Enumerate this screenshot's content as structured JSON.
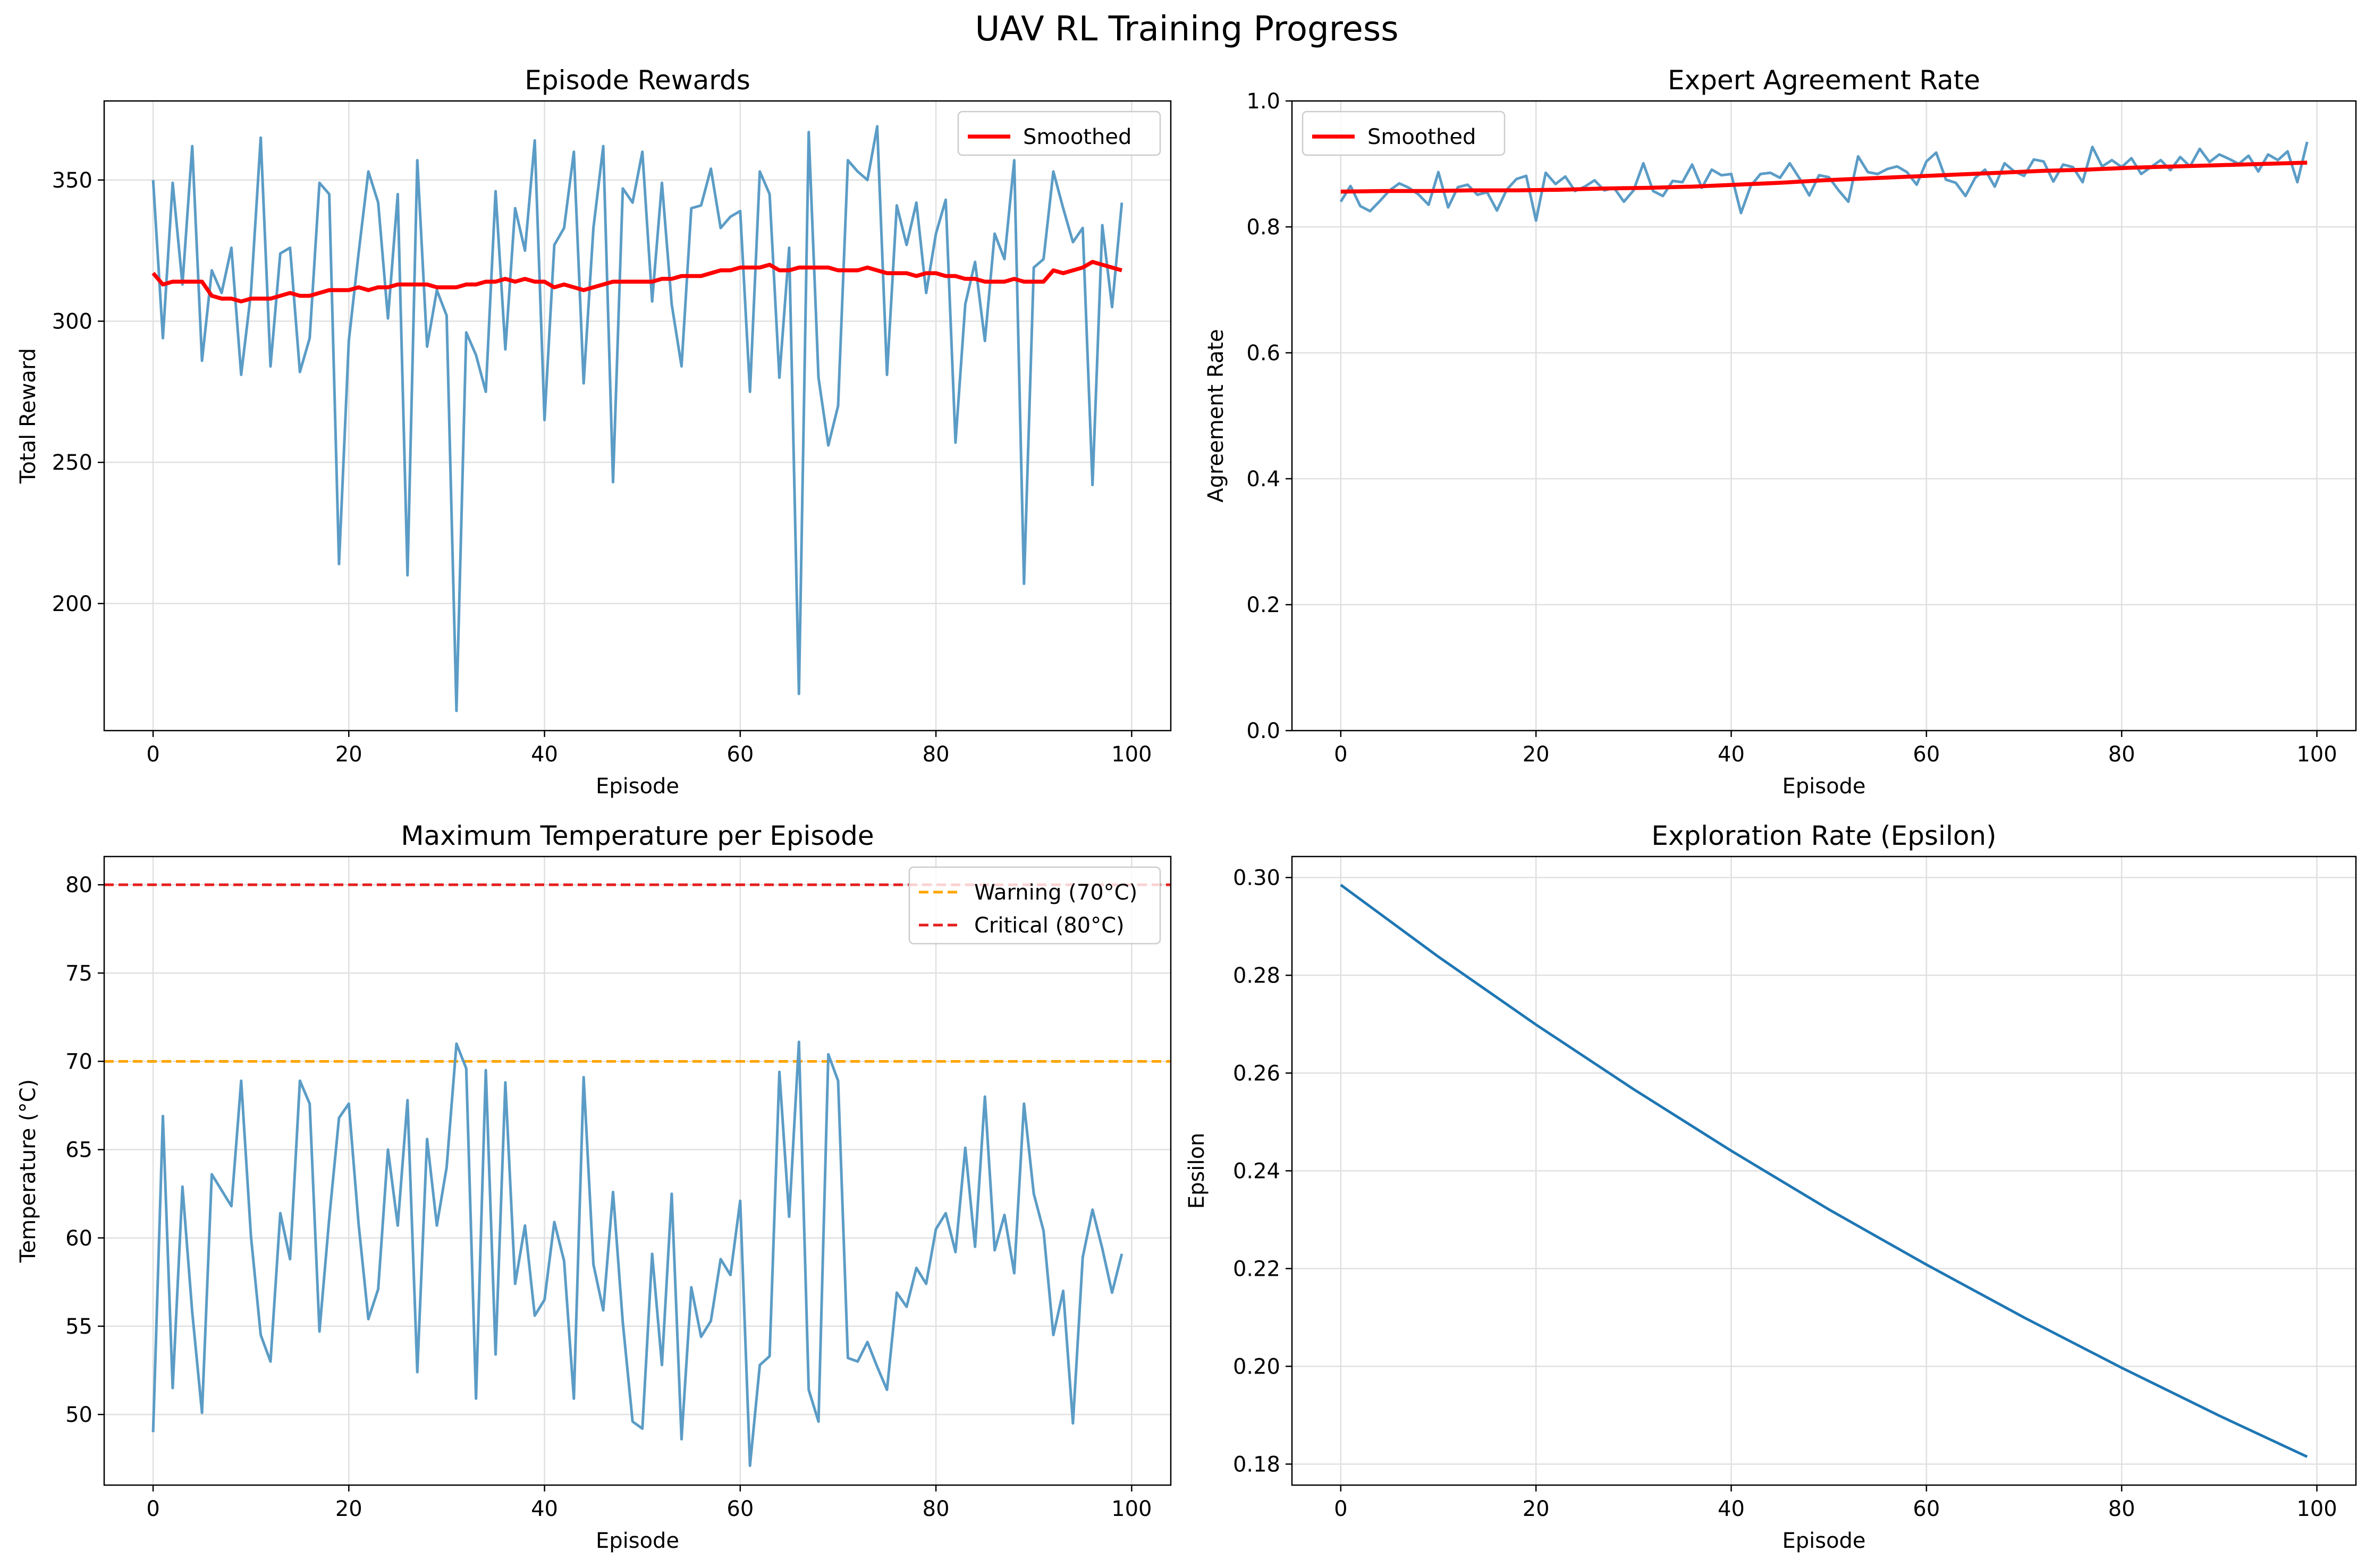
{
  "figure": {
    "suptitle": "UAV RL Training Progress"
  },
  "colors": {
    "raw": "#5b9cc6",
    "smoothed": "#ff0000",
    "warning": "#ffa500",
    "critical": "#e61e1e",
    "epsilon": "#1f77b4",
    "grid": "#e0e0e0"
  },
  "chart_data": [
    {
      "id": "rewards",
      "type": "line",
      "title": "Episode Rewards",
      "xlabel": "Episode",
      "ylabel": "Total Reward",
      "xlim": [
        -5,
        104
      ],
      "ylim": [
        155,
        378
      ],
      "xticks": [
        0,
        20,
        40,
        60,
        80,
        100
      ],
      "yticks": [
        200,
        250,
        300,
        350
      ],
      "grid": true,
      "legend": {
        "position": "top-right",
        "entries": [
          "Smoothed"
        ]
      },
      "series": [
        {
          "style": "raw",
          "x_start": 0,
          "values": [
            350,
            294,
            349,
            313,
            362,
            286,
            318,
            310,
            326,
            281,
            310,
            365,
            284,
            324,
            326,
            282,
            294,
            349,
            345,
            214,
            293,
            324,
            353,
            342,
            301,
            345,
            210,
            357,
            291,
            311,
            302,
            162,
            296,
            288,
            275,
            346,
            290,
            340,
            325,
            364,
            265,
            327,
            333,
            360,
            278,
            333,
            362,
            243,
            347,
            342,
            360,
            307,
            349,
            306,
            284,
            340,
            341,
            354,
            333,
            337,
            339,
            275,
            353,
            345,
            280,
            326,
            168,
            367,
            280,
            256,
            270,
            357,
            353,
            350,
            369,
            281,
            341,
            327,
            342,
            310,
            331,
            343,
            257,
            306,
            321,
            293,
            331,
            322,
            357,
            207,
            319,
            322,
            353,
            340,
            328,
            333,
            242,
            334,
            305,
            342
          ]
        },
        {
          "name": "Smoothed",
          "style": "smoothed",
          "x_start": 0,
          "values": [
            317,
            313,
            314,
            314,
            314,
            314,
            309,
            308,
            308,
            307,
            308,
            308,
            308,
            309,
            310,
            309,
            309,
            310,
            311,
            311,
            311,
            312,
            311,
            312,
            312,
            313,
            313,
            313,
            313,
            312,
            312,
            312,
            313,
            313,
            314,
            314,
            315,
            314,
            315,
            314,
            314,
            312,
            313,
            312,
            311,
            312,
            313,
            314,
            314,
            314,
            314,
            314,
            315,
            315,
            316,
            316,
            316,
            317,
            318,
            318,
            319,
            319,
            319,
            320,
            318,
            318,
            319,
            319,
            319,
            319,
            318,
            318,
            318,
            319,
            318,
            317,
            317,
            317,
            316,
            317,
            317,
            316,
            316,
            315,
            315,
            314,
            314,
            314,
            315,
            314,
            314,
            314,
            318,
            317,
            318,
            319,
            321,
            320,
            319,
            318
          ]
        }
      ]
    },
    {
      "id": "agreement",
      "type": "line",
      "title": "Expert Agreement Rate",
      "xlabel": "Episode",
      "ylabel": "Agreement Rate",
      "xlim": [
        -5,
        104
      ],
      "ylim": [
        0.0,
        1.0
      ],
      "xticks": [
        0,
        20,
        40,
        60,
        80,
        100
      ],
      "yticks": [
        0.0,
        0.2,
        0.4,
        0.6,
        0.8,
        1.0
      ],
      "grid": true,
      "legend": {
        "position": "top-left",
        "entries": [
          "Smoothed"
        ]
      },
      "series": [
        {
          "style": "raw",
          "x_start": 0,
          "values": [
            0.84,
            0.865,
            0.833,
            0.825,
            0.841,
            0.858,
            0.869,
            0.862,
            0.851,
            0.835,
            0.887,
            0.831,
            0.863,
            0.867,
            0.851,
            0.855,
            0.826,
            0.859,
            0.876,
            0.881,
            0.81,
            0.886,
            0.868,
            0.88,
            0.857,
            0.864,
            0.874,
            0.858,
            0.862,
            0.84,
            0.858,
            0.901,
            0.857,
            0.849,
            0.873,
            0.871,
            0.899,
            0.862,
            0.891,
            0.882,
            0.884,
            0.822,
            0.865,
            0.884,
            0.886,
            0.878,
            0.901,
            0.877,
            0.85,
            0.882,
            0.879,
            0.858,
            0.84,
            0.912,
            0.887,
            0.884,
            0.892,
            0.896,
            0.887,
            0.867,
            0.904,
            0.918,
            0.875,
            0.87,
            0.849,
            0.878,
            0.891,
            0.864,
            0.901,
            0.888,
            0.881,
            0.907,
            0.904,
            0.872,
            0.899,
            0.895,
            0.871,
            0.927,
            0.896,
            0.906,
            0.895,
            0.909,
            0.884,
            0.895,
            0.906,
            0.89,
            0.911,
            0.896,
            0.924,
            0.903,
            0.915,
            0.908,
            0.9,
            0.913,
            0.888,
            0.915,
            0.906,
            0.92,
            0.871,
            0.935
          ]
        },
        {
          "name": "Smoothed",
          "style": "smoothed",
          "x_start": 0,
          "x_end": 99,
          "values": [
            0.856,
            0.857,
            0.857,
            0.858,
            0.858,
            0.859,
            0.861,
            0.862,
            0.864,
            0.867,
            0.87,
            0.874,
            0.877,
            0.88,
            0.883,
            0.886,
            0.889,
            0.891,
            0.894,
            0.896,
            0.898,
            0.9,
            0.902
          ]
        }
      ]
    },
    {
      "id": "temperature",
      "type": "line",
      "title": "Maximum Temperature per Episode",
      "xlabel": "Episode",
      "ylabel": "Temperature (°C)",
      "xlim": [
        -5,
        104
      ],
      "ylim": [
        46.0,
        81.6
      ],
      "xticks": [
        0,
        20,
        40,
        60,
        80,
        100
      ],
      "yticks": [
        50,
        55,
        60,
        65,
        70,
        75,
        80
      ],
      "grid": true,
      "legend": {
        "position": "top-right",
        "entries": [
          "Warning (70°C)",
          "Critical (80°C)"
        ]
      },
      "hlines": [
        {
          "name": "Warning (70°C)",
          "y": 70,
          "style": "warning"
        },
        {
          "name": "Critical (80°C)",
          "y": 80,
          "style": "critical"
        }
      ],
      "series": [
        {
          "style": "raw",
          "x_start": 0,
          "values": [
            49.0,
            66.9,
            51.5,
            62.9,
            55.8,
            50.1,
            63.6,
            62.7,
            61.8,
            68.9,
            60.1,
            54.5,
            53.0,
            61.4,
            58.8,
            68.9,
            67.6,
            54.7,
            61.1,
            66.8,
            67.6,
            60.8,
            55.4,
            57.1,
            65.0,
            60.7,
            67.8,
            52.4,
            65.6,
            60.7,
            64.0,
            71.0,
            69.6,
            50.9,
            69.5,
            53.4,
            68.8,
            57.4,
            60.7,
            55.6,
            56.5,
            60.9,
            58.7,
            50.9,
            69.1,
            58.5,
            55.9,
            62.6,
            55.2,
            49.6,
            49.2,
            59.1,
            52.8,
            62.5,
            48.6,
            57.2,
            54.4,
            55.3,
            58.8,
            57.9,
            62.1,
            47.1,
            52.8,
            53.3,
            69.4,
            61.2,
            71.1,
            51.4,
            49.6,
            70.4,
            68.9,
            53.2,
            53.0,
            54.1,
            52.7,
            51.4,
            56.9,
            56.1,
            58.3,
            57.4,
            60.5,
            61.4,
            59.2,
            65.1,
            59.5,
            68.0,
            59.3,
            61.3,
            58.0,
            67.6,
            62.5,
            60.4,
            54.5,
            57.0,
            49.5,
            58.9,
            61.6,
            59.4,
            56.9,
            59.1
          ]
        }
      ]
    },
    {
      "id": "epsilon",
      "type": "line",
      "title": "Exploration Rate (Epsilon)",
      "xlabel": "Episode",
      "ylabel": "Epsilon",
      "xlim": [
        -5,
        104
      ],
      "ylim": [
        0.1757,
        0.3043
      ],
      "xticks": [
        0,
        20,
        40,
        60,
        80,
        100
      ],
      "yticks": [
        0.18,
        0.2,
        0.22,
        0.24,
        0.26,
        0.28,
        0.3
      ],
      "grid": true,
      "series": [
        {
          "style": "epsilon",
          "x": [
            0,
            10,
            20,
            30,
            40,
            50,
            60,
            70,
            80,
            90,
            99
          ],
          "values": [
            0.2985,
            0.2838,
            0.2699,
            0.2567,
            0.2441,
            0.2321,
            0.2208,
            0.21,
            0.1997,
            0.1899,
            0.1815
          ]
        }
      ]
    }
  ]
}
